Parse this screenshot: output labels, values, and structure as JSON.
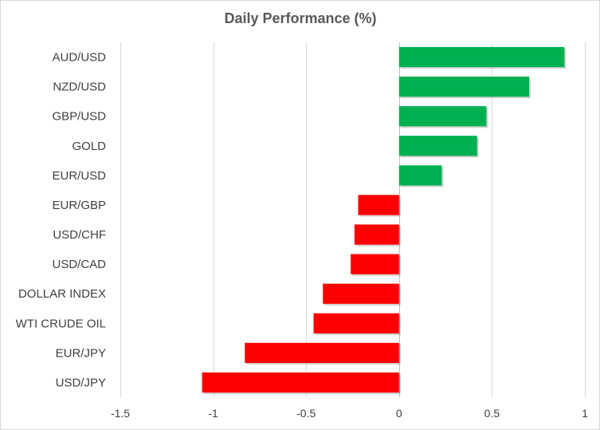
{
  "chart_data": {
    "type": "bar",
    "orientation": "horizontal",
    "title": "Daily Performance (%)",
    "xlabel": "",
    "ylabel": "",
    "categories": [
      "AUD/USD",
      "NZD/USD",
      "GBP/USD",
      "GOLD",
      "EUR/USD",
      "EUR/GBP",
      "USD/CHF",
      "USD/CAD",
      "DOLLAR INDEX",
      "WTI CRUDE OIL",
      "EUR/JPY",
      "USD/JPY"
    ],
    "values": [
      0.89,
      0.7,
      0.47,
      0.42,
      0.23,
      -0.22,
      -0.24,
      -0.26,
      -0.41,
      -0.46,
      -0.83,
      -1.06
    ],
    "xlim": [
      -1.5,
      1
    ],
    "xticks": [
      "-1.5",
      "-1",
      "-0.5",
      "0",
      "0.5",
      "1"
    ],
    "xtick_values": [
      -1.5,
      -1,
      -0.5,
      0,
      0.5,
      1
    ],
    "grid": true,
    "legend": "none",
    "colors": {
      "positive": "#00b050",
      "negative": "#ff0000",
      "gridline": "#d9d9d9",
      "text": "#404040",
      "title": "#595959"
    }
  }
}
